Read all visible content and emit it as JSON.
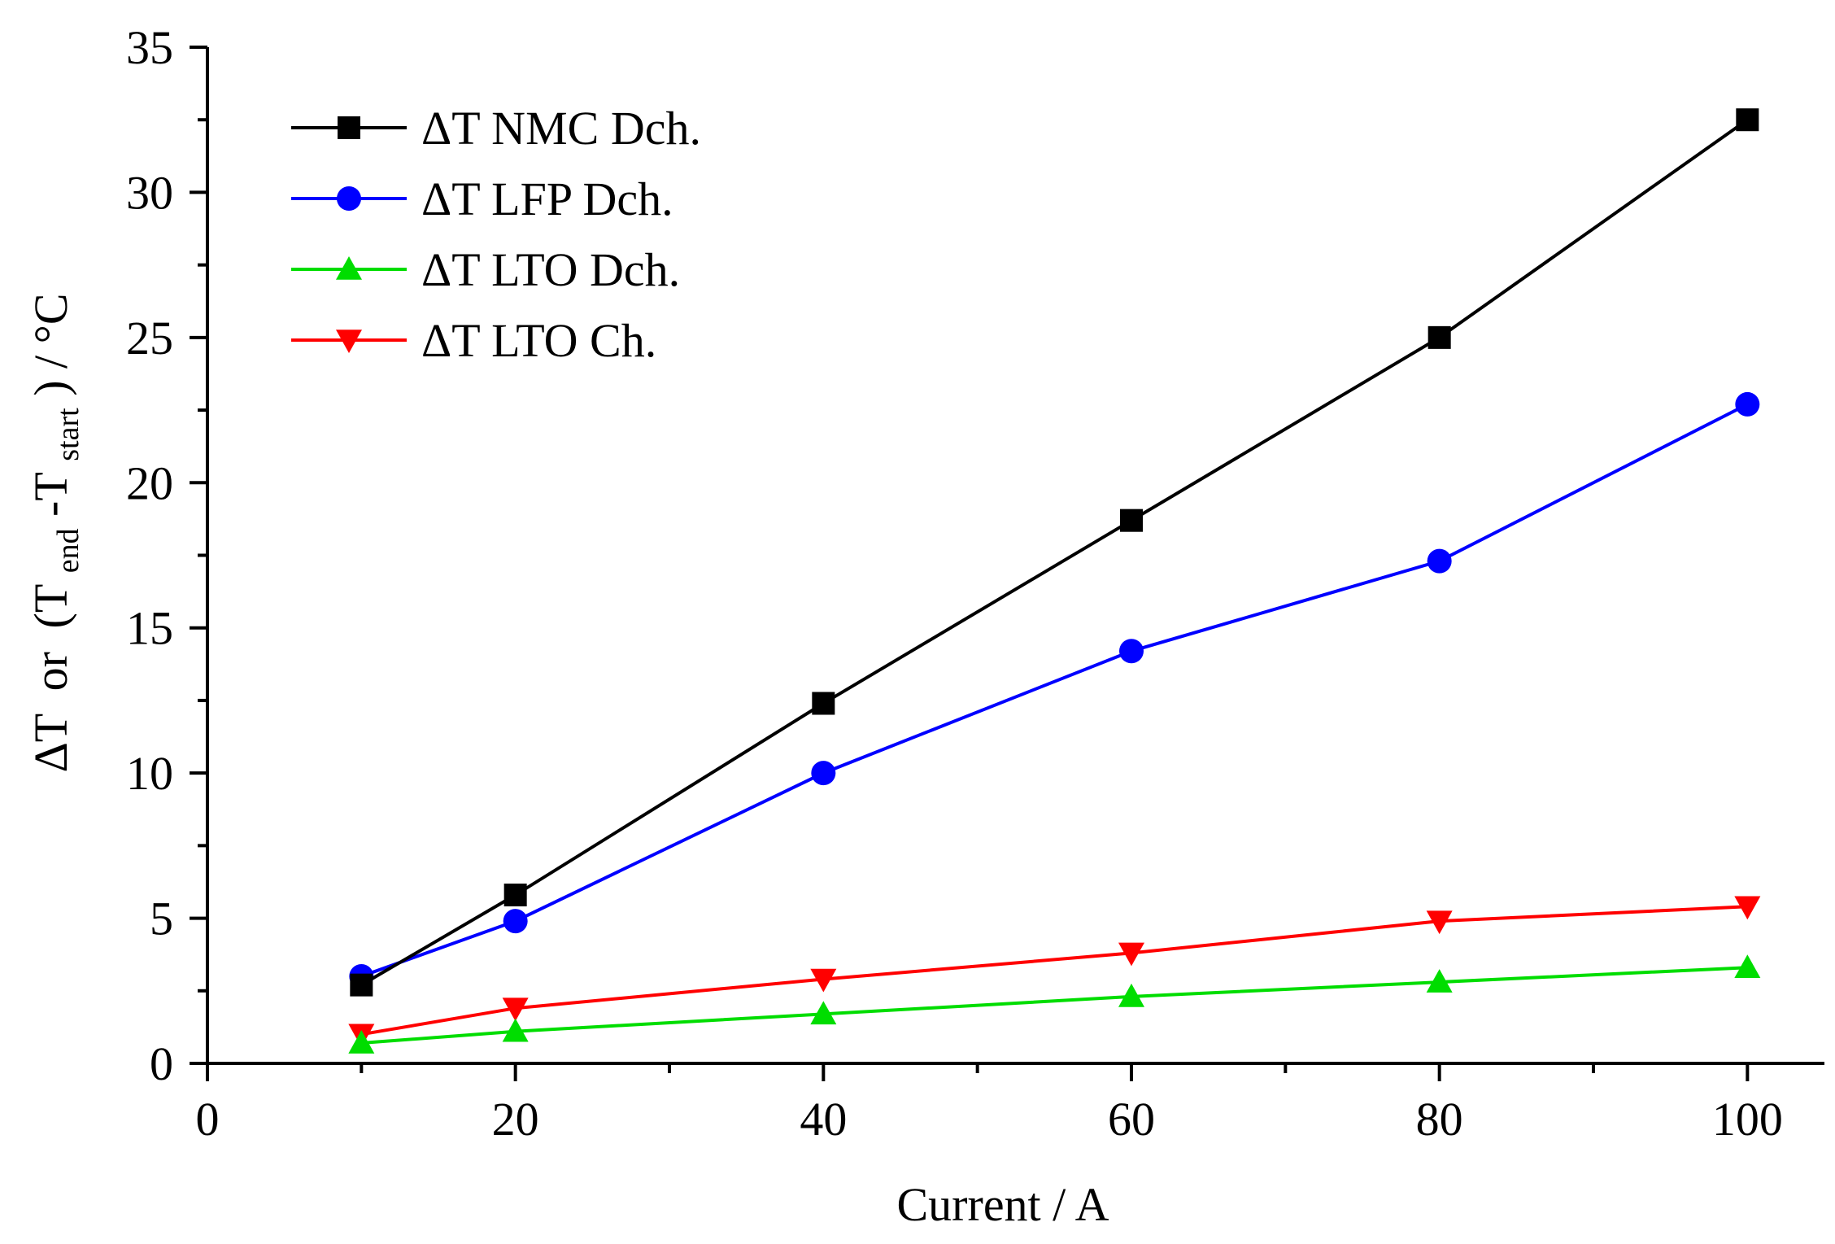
{
  "chart_data": {
    "type": "line",
    "title": "",
    "xlabel": "Current / A",
    "ylabel": {
      "delta": "ΔT",
      "or": "or",
      "open": "(T",
      "sub_end": "end",
      "minus": "-T",
      "sub_start": "start",
      "close": ") / °C"
    },
    "xlim": [
      0,
      105
    ],
    "ylim": [
      0,
      35
    ],
    "xticks": [
      "0",
      "20",
      "40",
      "60",
      "80",
      "100"
    ],
    "xtick_values": [
      0,
      20,
      40,
      60,
      80,
      100
    ],
    "yticks": [
      "0",
      "5",
      "10",
      "15",
      "20",
      "25",
      "30",
      "35"
    ],
    "ytick_values": [
      0,
      5,
      10,
      15,
      20,
      25,
      30,
      35
    ],
    "minor_x": [
      10,
      30,
      50,
      70,
      90
    ],
    "minor_y": [
      2.5,
      7.5,
      12.5,
      17.5,
      22.5,
      27.5,
      32.5
    ],
    "legend_position": "top-left",
    "x": [
      10,
      20,
      40,
      60,
      80,
      100
    ],
    "series": [
      {
        "name": "ΔT NMC Dch.",
        "color": "#000000",
        "marker": "square",
        "values": [
          2.7,
          5.8,
          12.4,
          18.7,
          25.0,
          32.5
        ]
      },
      {
        "name": "ΔT LFP Dch.",
        "color": "#0000ff",
        "marker": "circle",
        "values": [
          3.0,
          4.9,
          10.0,
          14.2,
          17.3,
          22.7
        ]
      },
      {
        "name": "ΔT LTO Dch.",
        "color": "#00dd00",
        "marker": "triangle-up",
        "values": [
          0.7,
          1.1,
          1.7,
          2.3,
          2.8,
          3.3
        ]
      },
      {
        "name": "ΔT LTO Ch.",
        "color": "#ff0000",
        "marker": "triangle-down",
        "values": [
          1.0,
          1.9,
          2.9,
          3.8,
          4.9,
          5.4
        ]
      }
    ]
  }
}
